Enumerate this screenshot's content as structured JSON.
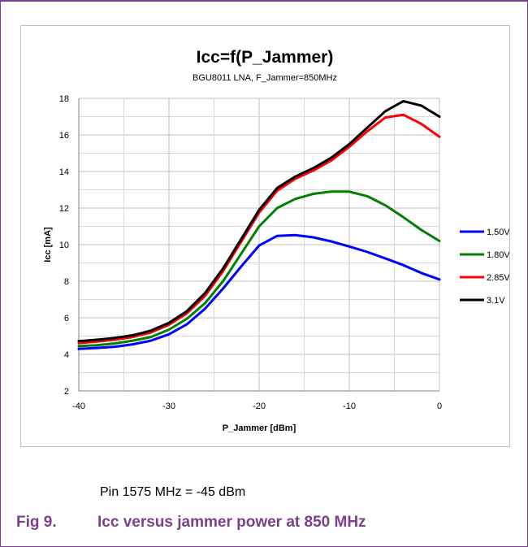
{
  "figure": {
    "note": "Pin 1575 MHz = -45 dBm",
    "label": "Fig 9.",
    "title": "Icc versus jammer power at 850 MHz"
  },
  "colors": {
    "frame": "#7b3f8c",
    "caption": "#7b3f8c",
    "grid": "#d9d9d9"
  },
  "chart_data": {
    "type": "line",
    "title": "Icc=f(P_Jammer)",
    "subtitle": "BGU8011 LNA, F_Jammer=850MHz",
    "xlabel": "P_Jammer [dBm]",
    "ylabel": "Icc [mA]",
    "xlim": [
      -40,
      0
    ],
    "ylim": [
      2,
      18
    ],
    "xticks": [
      -40,
      -30,
      -20,
      -10,
      0
    ],
    "yticks": [
      2,
      4,
      6,
      8,
      10,
      12,
      14,
      16,
      18
    ],
    "grid": true,
    "legend_position": "right",
    "x": [
      -40,
      -38,
      -36,
      -34,
      -32,
      -30,
      -28,
      -26,
      -24,
      -22,
      -20,
      -18,
      -16,
      -14,
      -12,
      -10,
      -8,
      -6,
      -4,
      -2,
      0
    ],
    "series": [
      {
        "name": "1.50V",
        "color": "#0000ff",
        "values": [
          4.3,
          4.35,
          4.42,
          4.55,
          4.75,
          5.1,
          5.65,
          6.5,
          7.6,
          8.8,
          9.95,
          10.48,
          10.52,
          10.4,
          10.18,
          9.9,
          9.6,
          9.25,
          8.88,
          8.45,
          8.1
        ]
      },
      {
        "name": "1.80V",
        "color": "#008000",
        "values": [
          4.45,
          4.5,
          4.6,
          4.75,
          4.95,
          5.35,
          5.95,
          6.8,
          8.0,
          9.5,
          11.0,
          12.0,
          12.5,
          12.78,
          12.9,
          12.9,
          12.65,
          12.15,
          11.5,
          10.8,
          10.2
        ]
      },
      {
        "name": "2.85V",
        "color": "#ff0000",
        "values": [
          4.62,
          4.7,
          4.8,
          4.95,
          5.2,
          5.62,
          6.25,
          7.2,
          8.55,
          10.15,
          11.75,
          12.95,
          13.6,
          14.05,
          14.6,
          15.35,
          16.2,
          16.95,
          17.1,
          16.6,
          15.9
        ]
      },
      {
        "name": "3.1V",
        "color": "#000000",
        "values": [
          4.72,
          4.8,
          4.9,
          5.05,
          5.3,
          5.72,
          6.37,
          7.35,
          8.7,
          10.3,
          11.9,
          13.1,
          13.72,
          14.18,
          14.75,
          15.5,
          16.4,
          17.3,
          17.85,
          17.6,
          17.0
        ]
      }
    ]
  }
}
